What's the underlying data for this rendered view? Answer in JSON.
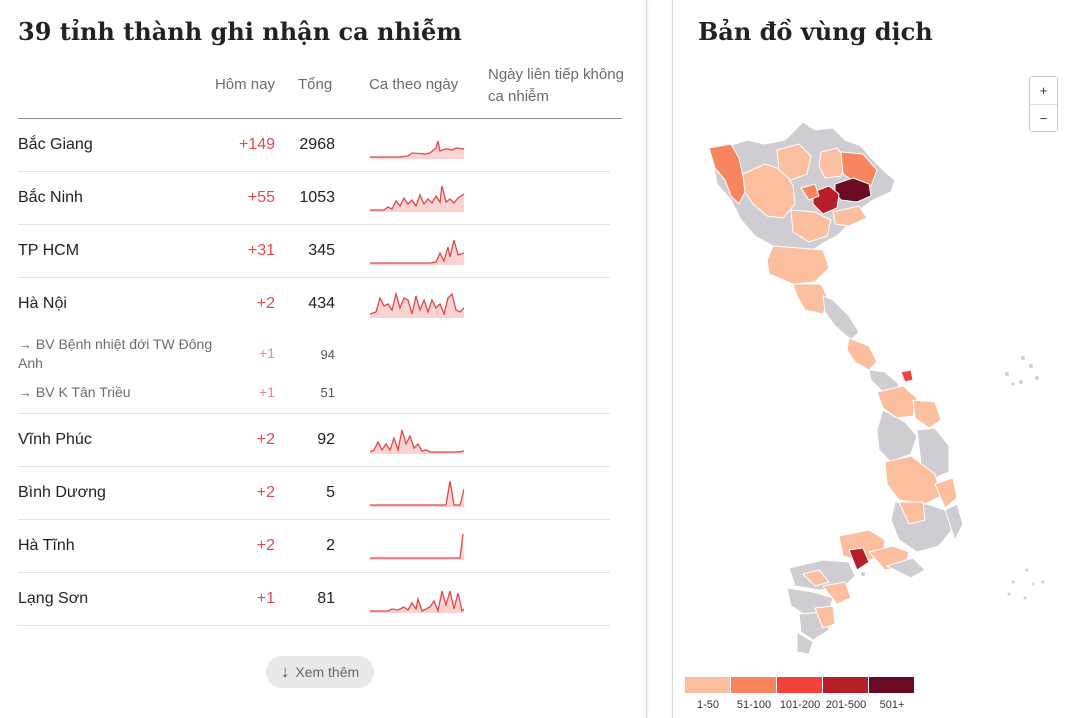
{
  "left_panel": {
    "title": "39 tỉnh thành ghi nhận ca nhiễm",
    "headers": {
      "today": "Hôm nay",
      "total": "Tổng",
      "daily": "Ca theo ngày",
      "streak": "Ngày liên tiếp không ca nhiễm"
    },
    "rows": [
      {
        "name": "Bắc Giang",
        "today": "+149",
        "total": "2968"
      },
      {
        "name": "Bắc Ninh",
        "today": "+55",
        "total": "1053"
      },
      {
        "name": "TP HCM",
        "today": "+31",
        "total": "345"
      },
      {
        "name": "Hà Nội",
        "today": "+2",
        "total": "434"
      },
      {
        "name": "Vĩnh Phúc",
        "today": "+2",
        "total": "92"
      },
      {
        "name": "Bình Dương",
        "today": "+2",
        "total": "5"
      },
      {
        "name": "Hà Tĩnh",
        "today": "+2",
        "total": "2"
      },
      {
        "name": "Lạng Sơn",
        "today": "+1",
        "total": "81"
      }
    ],
    "sub_rows": [
      {
        "name": "→ BV Bệnh nhiệt đới TW Đông Anh",
        "today": "+1",
        "total": "94"
      },
      {
        "name": "→ BV K Tân Triều",
        "today": "+1",
        "total": "51"
      }
    ],
    "more_button": "Xem thêm"
  },
  "right_panel": {
    "title": "Bản đồ vùng dịch",
    "zoom_in": "+",
    "zoom_out": "−",
    "legend": [
      {
        "label": "1-50",
        "color": "#fbbfa0"
      },
      {
        "label": "51-100",
        "color": "#f7865e"
      },
      {
        "label": "101-200",
        "color": "#f0413a"
      },
      {
        "label": "201-500",
        "color": "#b81d2a"
      },
      {
        "label": "501+",
        "color": "#6b0a24"
      }
    ]
  },
  "colors": {
    "accent_red": "#e5484d",
    "spark_line": "#e04848",
    "spark_fill": "#fbd3d3",
    "map_gray": "#cfcdd2"
  }
}
